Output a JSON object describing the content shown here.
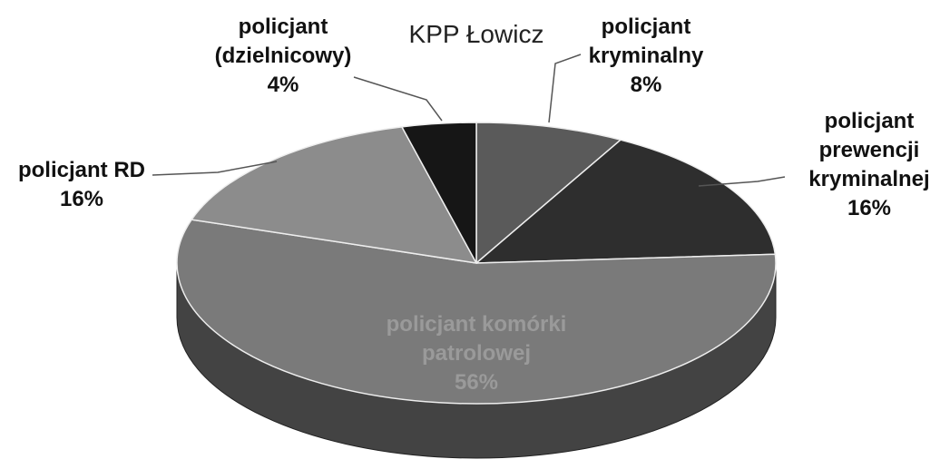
{
  "chart_data": {
    "type": "pie",
    "title": "KPP Łowicz",
    "categories": [
      "policjant kryminalny",
      "policjant prewencji kryminalnej",
      "policjant komórki patrolowej",
      "policjant RD",
      "policjant (dzielnicowy)"
    ],
    "values": [
      8,
      16,
      56,
      16,
      4
    ],
    "value_labels": [
      "8%",
      "16%",
      "56%",
      "16%",
      "4%"
    ],
    "colors": [
      "#5a5a5a",
      "#2e2e2e",
      "#7a7a7a",
      "#8c8c8c",
      "#161616"
    ]
  }
}
